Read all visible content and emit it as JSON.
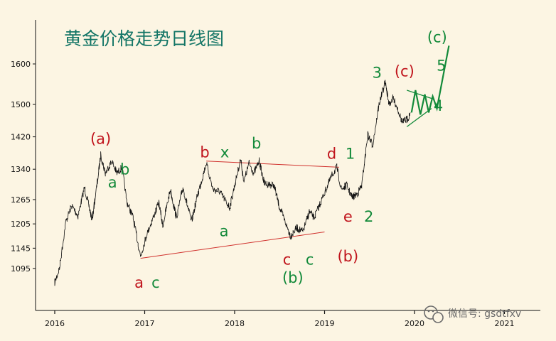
{
  "chart_data": {
    "type": "line",
    "title": "黄金价格走势日线图",
    "xlabel": "",
    "ylabel": "",
    "x_ticks": [
      "2016",
      "2017",
      "2018",
      "2019",
      "2020",
      "2021"
    ],
    "y_ticks": [
      1095,
      1145,
      1205,
      1265,
      1340,
      1420,
      1500,
      1600
    ],
    "xlim": [
      "2016-01-01",
      "2021-03-31"
    ],
    "ylim": [
      1070,
      1670
    ],
    "grid": false,
    "series": [
      {
        "color": "#111111",
        "points": [
          [
            "2016-01-01",
            1060
          ],
          [
            "2016-01-20",
            1095
          ],
          [
            "2016-02-15",
            1210
          ],
          [
            "2016-03-10",
            1250
          ],
          [
            "2016-04-05",
            1225
          ],
          [
            "2016-05-01",
            1295
          ],
          [
            "2016-06-01",
            1215
          ],
          [
            "2016-06-25",
            1320
          ],
          [
            "2016-07-06",
            1375
          ],
          [
            "2016-07-25",
            1330
          ],
          [
            "2016-08-20",
            1360
          ],
          [
            "2016-09-10",
            1330
          ],
          [
            "2016-10-01",
            1345
          ],
          [
            "2016-10-20",
            1260
          ],
          [
            "2016-11-15",
            1220
          ],
          [
            "2016-12-15",
            1125
          ],
          [
            "2017-01-10",
            1180
          ],
          [
            "2017-02-01",
            1215
          ],
          [
            "2017-02-28",
            1258
          ],
          [
            "2017-03-15",
            1200
          ],
          [
            "2017-04-15",
            1290
          ],
          [
            "2017-05-10",
            1220
          ],
          [
            "2017-06-05",
            1295
          ],
          [
            "2017-07-10",
            1210
          ],
          [
            "2017-08-01",
            1270
          ],
          [
            "2017-09-08",
            1355
          ],
          [
            "2017-10-05",
            1290
          ],
          [
            "2017-11-01",
            1285
          ],
          [
            "2017-12-12",
            1245
          ],
          [
            "2018-01-25",
            1365
          ],
          [
            "2018-02-08",
            1310
          ],
          [
            "2018-03-01",
            1355
          ],
          [
            "2018-03-20",
            1330
          ],
          [
            "2018-04-11",
            1360
          ],
          [
            "2018-05-01",
            1305
          ],
          [
            "2018-06-10",
            1300
          ],
          [
            "2018-06-30",
            1250
          ],
          [
            "2018-08-16",
            1175
          ],
          [
            "2018-09-10",
            1195
          ],
          [
            "2018-10-05",
            1185
          ],
          [
            "2018-10-31",
            1235
          ],
          [
            "2018-11-20",
            1220
          ],
          [
            "2018-12-31",
            1280
          ],
          [
            "2019-01-31",
            1325
          ],
          [
            "2019-02-20",
            1345
          ],
          [
            "2019-03-10",
            1290
          ],
          [
            "2019-04-01",
            1300
          ],
          [
            "2019-04-23",
            1270
          ],
          [
            "2019-05-15",
            1280
          ],
          [
            "2019-06-01",
            1300
          ],
          [
            "2019-06-25",
            1425
          ],
          [
            "2019-07-15",
            1400
          ],
          [
            "2019-08-10",
            1500
          ],
          [
            "2019-09-04",
            1555
          ],
          [
            "2019-09-20",
            1500
          ],
          [
            "2019-10-05",
            1515
          ],
          [
            "2019-10-25",
            1490
          ],
          [
            "2019-11-12",
            1455
          ],
          [
            "2019-12-05",
            1465
          ],
          [
            "2019-12-15",
            1480
          ]
        ]
      }
    ],
    "annotations": [
      {
        "text": "(a)",
        "color": "red",
        "x": "2016-07-06",
        "y": 1375
      },
      {
        "text": "a",
        "color": "green",
        "x": "2016-07-25",
        "y": 1330
      },
      {
        "text": "b",
        "color": "green",
        "x": "2016-10-01",
        "y": 1345
      },
      {
        "text": "a",
        "color": "red",
        "x": "2016-12-15",
        "y": 1125
      },
      {
        "text": "c",
        "color": "green",
        "x": "2017-01-05",
        "y": 1125
      },
      {
        "text": "b",
        "color": "red",
        "x": "2017-09-08",
        "y": 1355
      },
      {
        "text": "x",
        "color": "green",
        "x": "2017-10-01",
        "y": 1355
      },
      {
        "text": "a",
        "color": "green",
        "x": "2017-12-12",
        "y": 1245
      },
      {
        "text": "b",
        "color": "green",
        "x": "2018-04-11",
        "y": 1360
      },
      {
        "text": "c",
        "color": "red",
        "x": "2018-08-01",
        "y": 1175
      },
      {
        "text": "c",
        "color": "green",
        "x": "2018-09-05",
        "y": 1175
      },
      {
        "text": "(b)",
        "color": "green",
        "x": "2018-08-25",
        "y": 1140
      },
      {
        "text": "d",
        "color": "red",
        "x": "2019-02-05",
        "y": 1345
      },
      {
        "text": "1",
        "color": "green",
        "x": "2019-02-28",
        "y": 1345
      },
      {
        "text": "e",
        "color": "red",
        "x": "2019-04-23",
        "y": 1270
      },
      {
        "text": "2",
        "color": "green",
        "x": "2019-05-20",
        "y": 1270
      },
      {
        "text": "(b)",
        "color": "red",
        "x": "2019-04-23",
        "y": 1235
      },
      {
        "text": "3",
        "color": "green",
        "x": "2019-08-25",
        "y": 1555
      },
      {
        "text": "(c)",
        "color": "red",
        "x": "2019-09-30",
        "y": 1555
      },
      {
        "text": "4",
        "color": "green",
        "x": "2020-04-01",
        "y": 1460
      },
      {
        "text": "(c)",
        "color": "green",
        "x": "2020-05-01",
        "y": 1650
      },
      {
        "text": "5",
        "color": "green",
        "x": "2020-05-01",
        "y": 1615
      }
    ],
    "trendlines": [
      {
        "color": "red",
        "from": [
          "2017-09-08",
          1360
        ],
        "to": [
          "2019-03-01",
          1345
        ]
      },
      {
        "color": "red",
        "from": [
          "2016-12-15",
          1120
        ],
        "to": [
          "2019-01-01",
          1185
        ]
      },
      {
        "color": "green",
        "from": [
          "2019-12-01",
          1535
        ],
        "to": [
          "2020-03-10",
          1515
        ]
      },
      {
        "color": "green",
        "from": [
          "2019-12-01",
          1445
        ],
        "to": [
          "2020-03-10",
          1490
        ]
      }
    ],
    "forecast_path": {
      "color": "green",
      "points": [
        [
          "2019-12-20",
          1480
        ],
        [
          "2020-01-05",
          1535
        ],
        [
          "2020-01-25",
          1475
        ],
        [
          "2020-02-12",
          1525
        ],
        [
          "2020-02-28",
          1480
        ],
        [
          "2020-03-15",
          1520
        ],
        [
          "2020-04-01",
          1490
        ],
        [
          "2020-05-20",
          1645
        ]
      ]
    }
  },
  "watermark": {
    "icon": "wechat-icon",
    "text": "微信号: gsdtfxv"
  }
}
